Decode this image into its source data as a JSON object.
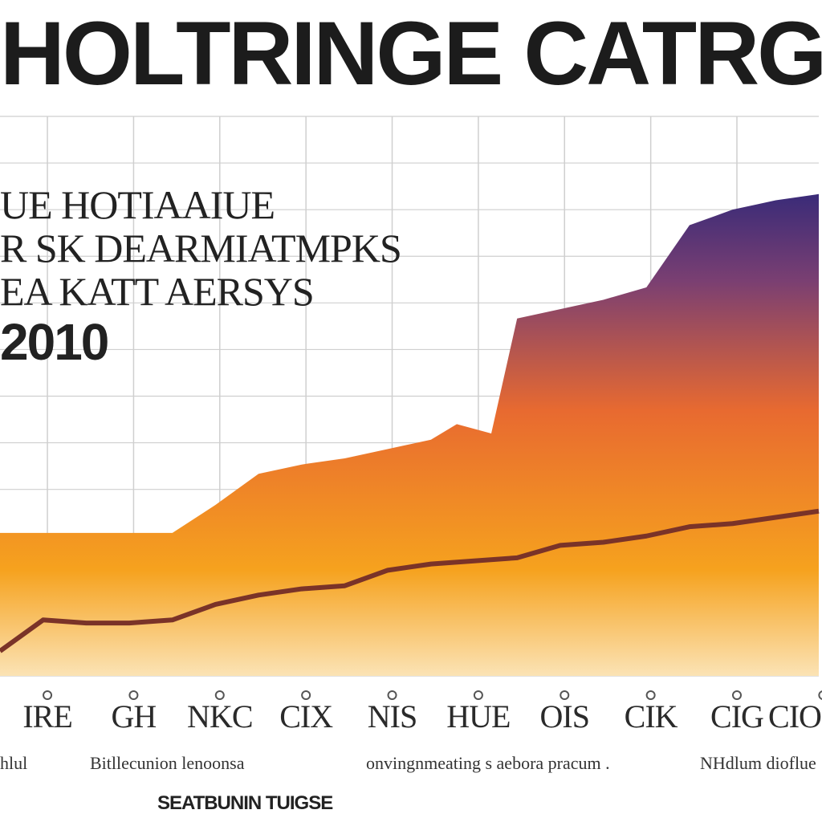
{
  "chart_data": {
    "type": "area",
    "title": "HOLTRINGE CATRGE",
    "annotation_lines": [
      "UE HOTIAAIUE",
      "R SK DEARMIATMPKS",
      "EA KATT AERSYS",
      "2010"
    ],
    "categories": [
      "IRE",
      "GH",
      "NKC",
      "CIX",
      "NIS",
      "HUE",
      "OIS",
      "CIK",
      "CIG",
      "CIO"
    ],
    "captions": [
      "hlul",
      "Bitllecunion lenoonsa",
      "onvingnmeating s aebora pracum .",
      "NHdlum dioflue",
      "SEATBUNIN TUIGSE"
    ],
    "series": [
      {
        "kind": "area",
        "x": [
          0.0,
          0.5,
          1.0,
          1.5,
          2.0,
          2.5,
          3.0,
          3.5,
          4.0,
          4.5,
          5.0,
          5.3,
          5.7,
          6.0,
          6.5,
          7.0,
          7.5,
          8.0,
          8.5,
          9.0,
          9.5
        ],
        "values": [
          4.6,
          4.6,
          4.6,
          4.6,
          4.6,
          5.5,
          6.5,
          6.8,
          7.0,
          7.3,
          7.6,
          8.1,
          7.8,
          11.5,
          11.8,
          12.1,
          12.5,
          14.5,
          15.0,
          15.3,
          15.5
        ]
      },
      {
        "kind": "line",
        "x": [
          0.0,
          0.5,
          1.0,
          1.5,
          2.0,
          2.5,
          3.0,
          3.5,
          4.0,
          4.5,
          5.0,
          5.5,
          6.0,
          6.5,
          7.0,
          7.5,
          8.0,
          8.5,
          9.0,
          9.5
        ],
        "values": [
          0.8,
          1.8,
          1.7,
          1.7,
          1.8,
          2.3,
          2.6,
          2.8,
          2.9,
          3.4,
          3.6,
          3.7,
          3.8,
          4.2,
          4.3,
          4.5,
          4.8,
          4.9,
          5.1,
          5.3
        ]
      }
    ],
    "xlim": [
      0.0,
      9.5
    ],
    "ylim": [
      0,
      18
    ],
    "grid": true,
    "colors": {
      "area_top": "#3a2b78",
      "area_mid_upper": "#7a3f72",
      "area_mid": "#e86a30",
      "area_low": "#f6a21e",
      "area_bottom": "#fbe3b5",
      "line": "#7a3328",
      "grid": "#cfcfcf"
    }
  }
}
